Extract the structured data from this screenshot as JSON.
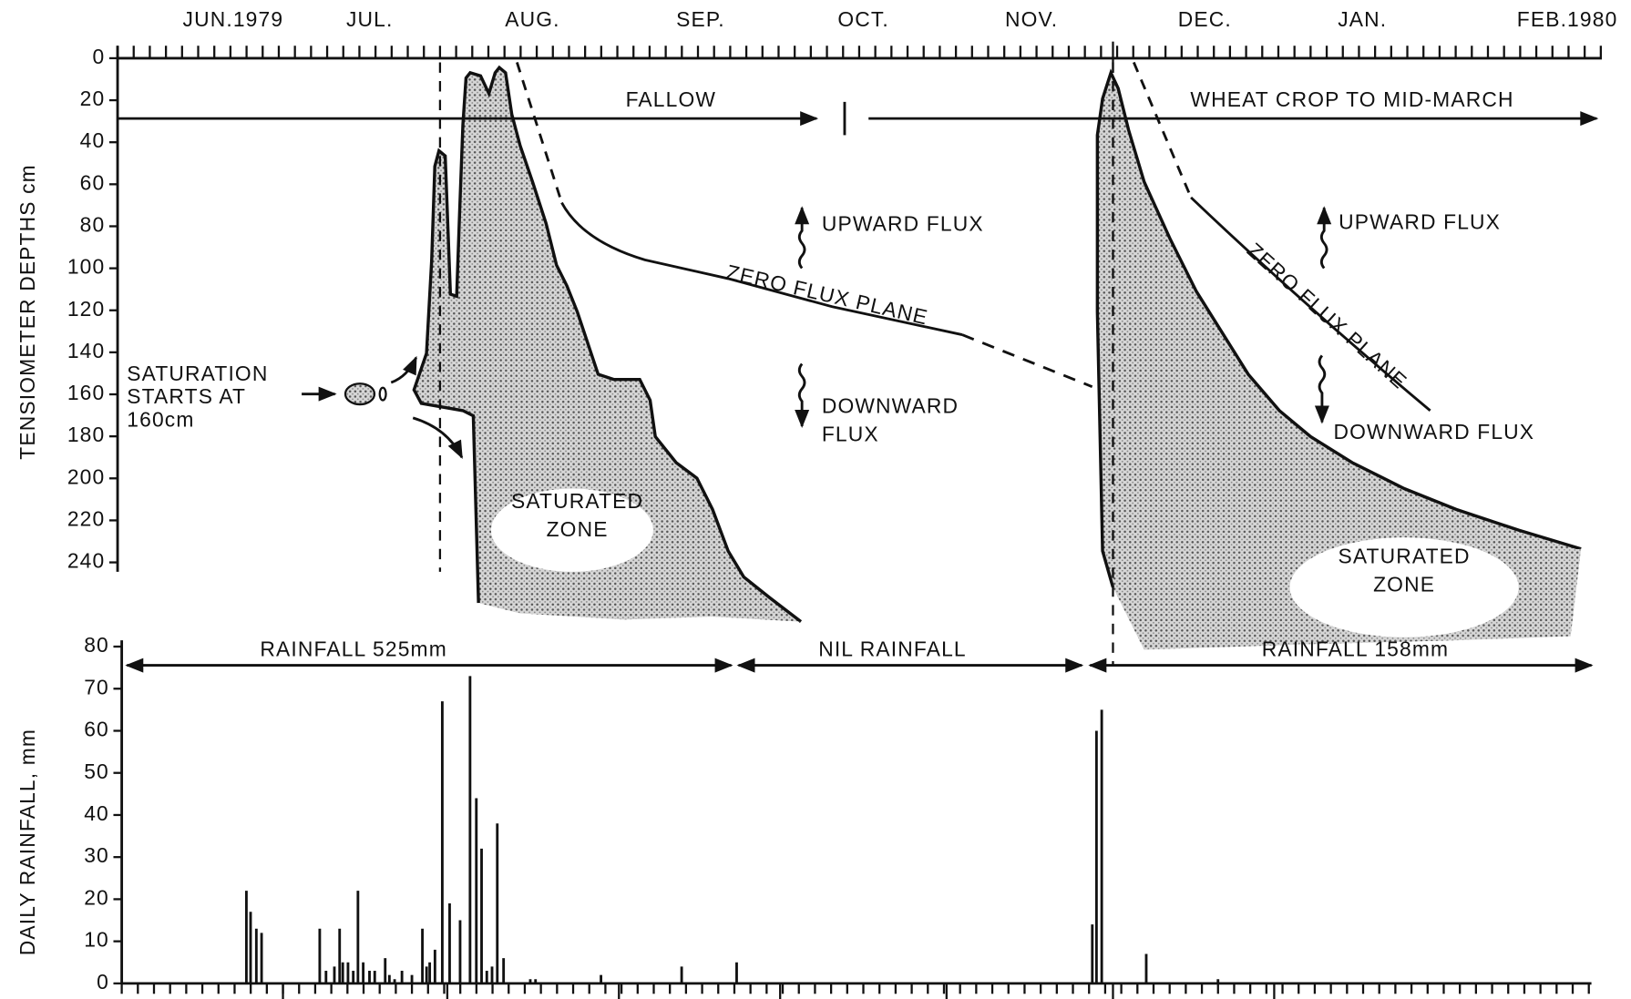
{
  "chart_data": [
    {
      "type": "area",
      "ylabel": "TENSIOMETER DEPTHS  cm",
      "ylim": [
        0,
        240
      ],
      "invert_y": true,
      "yticks": [
        0,
        20,
        40,
        60,
        80,
        100,
        120,
        140,
        160,
        180,
        200,
        220,
        240
      ],
      "xlim": [
        0,
        280
      ],
      "xticks": [
        {
          "value": 22,
          "label": "JUN.1979"
        },
        {
          "value": 48,
          "label": "JUL."
        },
        {
          "value": 79,
          "label": "AUG."
        },
        {
          "value": 111,
          "label": "SEP."
        },
        {
          "value": 142,
          "label": "OCT."
        },
        {
          "value": 174,
          "label": "NOV."
        },
        {
          "value": 207,
          "label": "DEC."
        },
        {
          "value": 237,
          "label": "JAN."
        },
        {
          "value": 276,
          "label": "FEB.1980"
        }
      ],
      "annotations": [
        {
          "lines": [
            "FALLOW"
          ]
        },
        {
          "lines": [
            "WHEAT CROP TO MID-MARCH"
          ]
        },
        {
          "lines": [
            "UPWARD FLUX"
          ]
        },
        {
          "lines": [
            "UPWARD FLUX"
          ]
        },
        {
          "lines": [
            "DOWNWARD",
            "FLUX"
          ]
        },
        {
          "lines": [
            "DOWNWARD FLUX"
          ]
        },
        {
          "lines": [
            "SATURATION",
            "STARTS AT",
            "160cm"
          ]
        },
        {
          "lines": [
            "SATURATED",
            "ZONE"
          ]
        },
        {
          "lines": [
            "SATURATED",
            "ZONE"
          ]
        },
        {
          "lines": [
            "ZERO FLUX PLANE"
          ]
        },
        {
          "lines": [
            "ZERO FLUX PLANE"
          ]
        }
      ]
    },
    {
      "type": "bar",
      "ylabel": "DAILY RAINFALL, mm",
      "ylim": [
        0,
        80
      ],
      "yticks": [
        0,
        10,
        20,
        30,
        40,
        50,
        60,
        70,
        80
      ],
      "xlim": [
        0,
        280
      ],
      "color": "#111111",
      "x": [
        23.8,
        24.6,
        25.7,
        26.7,
        37.8,
        39.0,
        40.6,
        41.6,
        42.2,
        43.2,
        44.2,
        45.1,
        46.1,
        47.3,
        48.3,
        50.3,
        51.1,
        52.1,
        53.5,
        55.4,
        57.4,
        58.2,
        58.8,
        59.8,
        61.2,
        62.6,
        64.6,
        66.5,
        67.7,
        68.7,
        69.7,
        70.7,
        71.7,
        72.9,
        78.0,
        79.0,
        91.5,
        106.9,
        117.4,
        185.3,
        186.1,
        187.1,
        195.6,
        209.3
      ],
      "values": [
        22,
        17,
        13,
        12,
        13,
        3,
        4,
        13,
        5,
        5,
        3,
        22,
        5,
        3,
        3,
        6,
        2,
        1,
        3,
        2,
        13,
        4,
        5,
        8,
        67,
        19,
        15,
        73,
        44,
        32,
        3,
        4,
        38,
        6,
        1,
        1,
        2,
        4,
        5,
        14,
        60,
        65,
        7,
        1
      ],
      "annotations": [
        {
          "lines": [
            "RAINFALL 525mm"
          ]
        },
        {
          "lines": [
            "NIL RAINFALL"
          ]
        },
        {
          "lines": [
            "RAINFALL 158mm"
          ]
        }
      ]
    }
  ]
}
